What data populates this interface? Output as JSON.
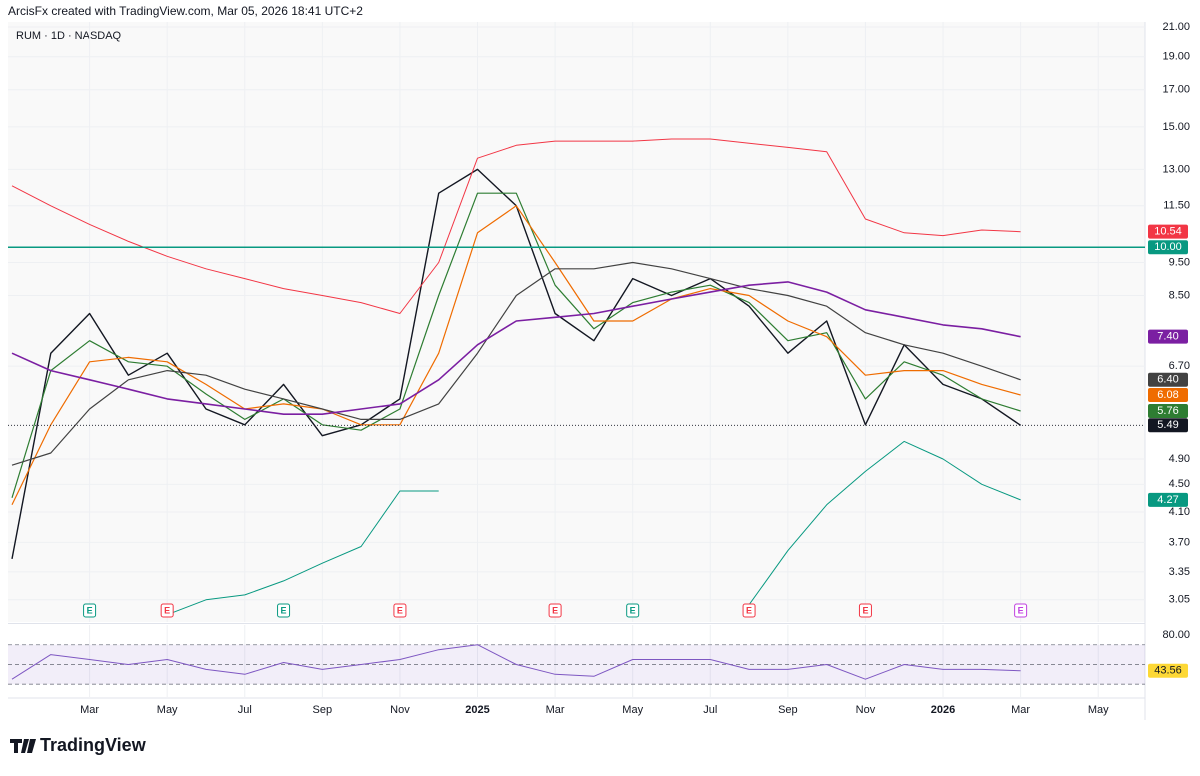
{
  "header": {
    "credit": "ArcisFx created with TradingView.com, Mar 05, 2026 18:41 UTC+2"
  },
  "footer": {
    "brand": "TradingView"
  },
  "chart_data": [
    {
      "type": "line",
      "title": "RUM · 1D · NASDAQ",
      "log_scale": true,
      "grid": true,
      "xlim": [
        "2024-01",
        "2026-06"
      ],
      "ylim": [
        2.83,
        21.36
      ],
      "xticks": [
        {
          "value": "2024-03",
          "label": "Mar"
        },
        {
          "value": "2024-05",
          "label": "May"
        },
        {
          "value": "2024-07",
          "label": "Jul"
        },
        {
          "value": "2024-09",
          "label": "Sep"
        },
        {
          "value": "2024-11",
          "label": "Nov"
        },
        {
          "value": "2025-01",
          "label": "2025"
        },
        {
          "value": "2025-03",
          "label": "Mar"
        },
        {
          "value": "2025-05",
          "label": "May"
        },
        {
          "value": "2025-07",
          "label": "Jul"
        },
        {
          "value": "2025-09",
          "label": "Sep"
        },
        {
          "value": "2025-11",
          "label": "Nov"
        },
        {
          "value": "2026-01",
          "label": "2026"
        },
        {
          "value": "2026-03",
          "label": "Mar"
        },
        {
          "value": "2026-05",
          "label": "May"
        }
      ],
      "yticks": [
        {
          "value": 21,
          "label": "21.00"
        },
        {
          "value": 19,
          "label": "19.00"
        },
        {
          "value": 17,
          "label": "17.00"
        },
        {
          "value": 15,
          "label": "15.00"
        },
        {
          "value": 13,
          "label": "13.00"
        },
        {
          "value": 11.5,
          "label": "11.50"
        },
        {
          "value": 9.5,
          "label": "9.50"
        },
        {
          "value": 8.5,
          "label": "8.50"
        },
        {
          "value": 6.7,
          "label": "6.70"
        },
        {
          "value": 4.9,
          "label": "4.90"
        },
        {
          "value": 4.5,
          "label": "4.50"
        },
        {
          "value": 4.1,
          "label": "4.10"
        },
        {
          "value": 3.7,
          "label": "3.70"
        },
        {
          "value": 3.35,
          "label": "3.35"
        },
        {
          "value": 3.05,
          "label": "3.05"
        }
      ],
      "x": [
        "2024-01",
        "2024-02",
        "2024-03",
        "2024-04",
        "2024-05",
        "2024-06",
        "2024-07",
        "2024-08",
        "2024-09",
        "2024-10",
        "2024-11",
        "2024-12",
        "2025-01",
        "2025-02",
        "2025-03",
        "2025-04",
        "2025-05",
        "2025-06",
        "2025-07",
        "2025-08",
        "2025-09",
        "2025-10",
        "2025-11",
        "2025-12",
        "2026-01",
        "2026-02",
        "2026-03"
      ],
      "series": [
        {
          "color": "#131722",
          "width": 1.4,
          "values": [
            3.5,
            7.0,
            8.0,
            6.5,
            7.0,
            5.8,
            5.5,
            6.3,
            5.3,
            5.5,
            6.0,
            12.0,
            13.0,
            11.5,
            8.0,
            7.3,
            9.0,
            8.5,
            9.0,
            8.2,
            7.0,
            7.8,
            5.5,
            7.2,
            6.3,
            6.0,
            5.49
          ]
        },
        {
          "color": "#2e7d32",
          "width": 1.2,
          "values": [
            4.3,
            6.6,
            7.3,
            6.8,
            6.7,
            6.1,
            5.6,
            6.0,
            5.5,
            5.4,
            5.8,
            8.5,
            12.0,
            12.0,
            8.8,
            7.6,
            8.3,
            8.6,
            8.8,
            8.3,
            7.3,
            7.5,
            6.0,
            6.8,
            6.5,
            6.0,
            5.76
          ]
        },
        {
          "color": "#ef6c00",
          "width": 1.2,
          "values": [
            4.2,
            5.5,
            6.8,
            6.9,
            6.8,
            6.3,
            5.8,
            5.9,
            5.8,
            5.5,
            5.5,
            7.0,
            10.5,
            11.5,
            9.5,
            7.8,
            7.8,
            8.4,
            8.7,
            8.5,
            7.8,
            7.4,
            6.5,
            6.6,
            6.6,
            6.3,
            6.08
          ]
        },
        {
          "color": "#424242",
          "width": 1.2,
          "values": [
            4.8,
            5.0,
            5.8,
            6.4,
            6.6,
            6.5,
            6.2,
            6.0,
            5.8,
            5.6,
            5.6,
            5.9,
            7.0,
            8.5,
            9.3,
            9.3,
            9.5,
            9.3,
            9.0,
            8.7,
            8.5,
            8.2,
            7.5,
            7.2,
            7.0,
            6.7,
            6.4
          ]
        },
        {
          "color": "#7b1fa2",
          "width": 1.6,
          "values": [
            7.0,
            6.6,
            6.4,
            6.2,
            6.0,
            5.9,
            5.8,
            5.7,
            5.7,
            5.8,
            5.9,
            6.4,
            7.2,
            7.8,
            7.9,
            8.0,
            8.2,
            8.4,
            8.6,
            8.8,
            8.9,
            8.6,
            8.1,
            7.9,
            7.7,
            7.6,
            7.4
          ]
        },
        {
          "color": "#f23645",
          "width": 1,
          "values": [
            12.3,
            11.5,
            10.8,
            10.2,
            9.7,
            9.3,
            9.0,
            8.7,
            8.5,
            8.3,
            8.0,
            9.5,
            13.5,
            14.1,
            14.3,
            14.3,
            14.3,
            14.4,
            14.4,
            14.2,
            14.0,
            13.8,
            11.0,
            10.5,
            10.4,
            10.6,
            10.54
          ]
        },
        {
          "color": "#089981",
          "width": 1,
          "values": [
            null,
            null,
            null,
            null,
            2.9,
            3.05,
            3.1,
            3.25,
            3.45,
            3.65,
            4.4,
            4.4,
            null,
            null,
            null,
            null,
            null,
            null,
            null,
            3.0,
            3.6,
            4.2,
            4.7,
            5.2,
            4.9,
            4.5,
            4.27
          ]
        }
      ],
      "hline": {
        "value": 10,
        "color": "#089981"
      },
      "price_badges": [
        {
          "value": 10.54,
          "color": "#f23645"
        },
        {
          "value": 10.0,
          "color": "#089981"
        },
        {
          "value": 7.4,
          "color": "#7b1fa2"
        },
        {
          "value": 6.4,
          "color": "#424242"
        },
        {
          "value": 6.08,
          "color": "#ef6c00"
        },
        {
          "value": 5.76,
          "color": "#2e7d32"
        },
        {
          "value": 5.49,
          "color": "#131722"
        },
        {
          "value": 4.27,
          "color": "#089981"
        }
      ],
      "events": [
        {
          "x": "2024-03",
          "label": "E",
          "color": "#089981"
        },
        {
          "x": "2024-05",
          "label": "E",
          "color": "#f23645"
        },
        {
          "x": "2024-08",
          "label": "E",
          "color": "#089981"
        },
        {
          "x": "2024-11",
          "label": "E",
          "color": "#f23645"
        },
        {
          "x": "2025-03",
          "label": "E",
          "color": "#f23645"
        },
        {
          "x": "2025-05",
          "label": "E",
          "color": "#089981"
        },
        {
          "x": "2025-08",
          "label": "E",
          "color": "#f23645"
        },
        {
          "x": "2025-11",
          "label": "E",
          "color": "#f23645"
        },
        {
          "x": "2026-03",
          "label": "E",
          "color": "#c040e0"
        }
      ]
    },
    {
      "type": "line",
      "xlim": [
        "2024-01",
        "2026-06"
      ],
      "ylim": [
        17,
        90
      ],
      "yticks": [
        {
          "value": 80,
          "label": "80.00"
        }
      ],
      "levels": [
        70,
        50,
        30
      ],
      "x": [
        "2024-01",
        "2024-02",
        "2024-03",
        "2024-04",
        "2024-05",
        "2024-06",
        "2024-07",
        "2024-08",
        "2024-09",
        "2024-10",
        "2024-11",
        "2024-12",
        "2025-01",
        "2025-02",
        "2025-03",
        "2025-04",
        "2025-05",
        "2025-06",
        "2025-07",
        "2025-08",
        "2025-09",
        "2025-10",
        "2025-11",
        "2025-12",
        "2026-01",
        "2026-02",
        "2026-03"
      ],
      "series": [
        {
          "color": "#7e57c2",
          "width": 1,
          "values": [
            35,
            60,
            55,
            50,
            55,
            45,
            40,
            52,
            45,
            50,
            55,
            65,
            70,
            50,
            40,
            38,
            55,
            55,
            55,
            45,
            45,
            50,
            35,
            50,
            45,
            45,
            43.56
          ]
        }
      ],
      "last_badge": {
        "value": 43.56,
        "color": "#fdd835"
      }
    }
  ]
}
